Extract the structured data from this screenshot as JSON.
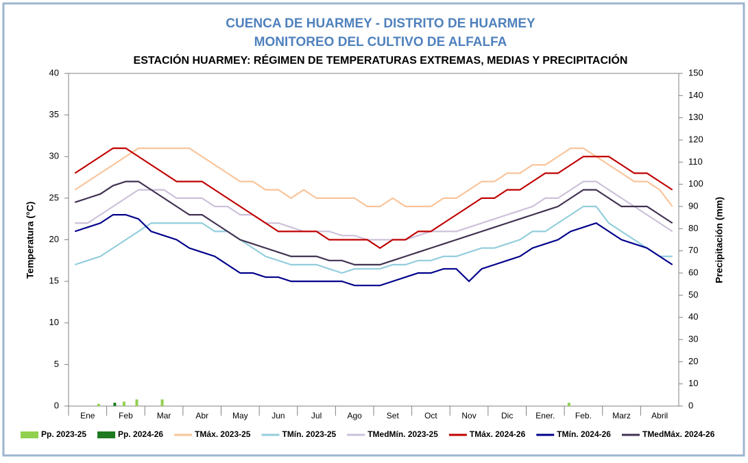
{
  "chart_data": {
    "type": "line",
    "title": "CUENCA DE HUARMEY - DISTRITO DE HUARMEY",
    "subtitle": "MONITOREO DEL CULTIVO DE ALFALFA",
    "chart_title": "ESTACIÓN HUARMEY: RÉGIMEN DE TEMPERATURAS EXTREMAS, MEDIAS Y PRECIPITACIÓN",
    "y_label": "Temperatura (°C)",
    "y2_label": "Precipitación (mm)",
    "categories": [
      null,
      "Ene",
      null,
      null,
      "Feb",
      null,
      null,
      "Mar",
      null,
      null,
      "Abr",
      null,
      null,
      "May",
      null,
      null,
      "Jun",
      null,
      null,
      "Jul",
      null,
      null,
      "Ago",
      null,
      null,
      "Set",
      null,
      null,
      "Oct",
      null,
      null,
      "Nov",
      null,
      null,
      "Dic",
      null,
      null,
      "Ener.",
      null,
      null,
      "Feb.",
      null,
      null,
      "Marz",
      null,
      null,
      "Abril",
      null
    ],
    "ylim": [
      0,
      40
    ],
    "yticks": [
      0,
      5,
      10,
      15,
      20,
      25,
      30,
      35,
      40
    ],
    "y2lim": [
      0,
      150
    ],
    "y2ticks": [
      0,
      10,
      20,
      30,
      40,
      50,
      60,
      70,
      80,
      90,
      100,
      110,
      120,
      130,
      140,
      150
    ],
    "series": [
      {
        "name": "Pp. 2023-25",
        "type": "bar",
        "axis": "y2",
        "color": "#92d050",
        "values": [
          0,
          0,
          1,
          0,
          2,
          3,
          0,
          3,
          0,
          0,
          0,
          0,
          0,
          0,
          0,
          0,
          0,
          0,
          0,
          0,
          0,
          0,
          0,
          0,
          0,
          0,
          0,
          0,
          0,
          0,
          0,
          0,
          0,
          0,
          0,
          0,
          0,
          0,
          0,
          1.5,
          0,
          0,
          0,
          0,
          0,
          0,
          0,
          0
        ]
      },
      {
        "name": "Pp. 2024-26",
        "type": "bar",
        "axis": "y2",
        "color": "#1e7a1e",
        "values": [
          0,
          0,
          0,
          1.5,
          0,
          0,
          0,
          0,
          0,
          0,
          0,
          0,
          0,
          0,
          0,
          0,
          0,
          0,
          0,
          0,
          0,
          0,
          0,
          0,
          0,
          0,
          0,
          0,
          0,
          0,
          0,
          0,
          0,
          0,
          0,
          0,
          0,
          0,
          0,
          0,
          0,
          0,
          0,
          0,
          0,
          0,
          0,
          0
        ]
      },
      {
        "name": "TMáx. 2023-25",
        "type": "line",
        "color": "#f9c49a",
        "values": [
          26,
          27,
          28,
          29,
          30,
          31,
          31,
          31,
          31,
          31,
          30,
          29,
          28,
          27,
          27,
          26,
          26,
          25,
          26,
          25,
          25,
          25,
          25,
          24,
          24,
          25,
          24,
          24,
          24,
          25,
          25,
          26,
          27,
          27,
          28,
          28,
          29,
          29,
          30,
          31,
          31,
          30,
          29,
          28,
          27,
          27,
          26,
          24
        ]
      },
      {
        "name": "TMín. 2023-25",
        "type": "line",
        "color": "#92cddc",
        "values": [
          17,
          17.5,
          18,
          19,
          20,
          21,
          22,
          22,
          22,
          22,
          22,
          21,
          21,
          20,
          19,
          18,
          17.5,
          17,
          17,
          17,
          16.5,
          16,
          16.5,
          16.5,
          16.5,
          17,
          17,
          17.5,
          17.5,
          18,
          18,
          18.5,
          19,
          19,
          19.5,
          20,
          21,
          21,
          22,
          23,
          24,
          24,
          22,
          21,
          20,
          19,
          18,
          18
        ]
      },
      {
        "name": "TMedMín. 2023-25",
        "type": "line",
        "color": "#ccc0da",
        "values": [
          22,
          22,
          23,
          24,
          25,
          26,
          26,
          26,
          25,
          25,
          25,
          24,
          24,
          23,
          23,
          22,
          22,
          21.5,
          21,
          21,
          21,
          20.5,
          20.5,
          20,
          20,
          20,
          20,
          20.5,
          21,
          21,
          21,
          21.5,
          22,
          22.5,
          23,
          23.5,
          24,
          25,
          25,
          26,
          27,
          27,
          26,
          25,
          24,
          23,
          22,
          21
        ]
      },
      {
        "name": "TMáx. 2024-26",
        "type": "line",
        "color": "#c00000",
        "values": [
          28,
          29,
          30,
          31,
          31,
          30,
          29,
          28,
          27,
          27,
          27,
          26,
          25,
          24,
          23,
          22,
          21,
          21,
          21,
          21,
          20,
          20,
          20,
          20,
          19,
          20,
          20,
          21,
          21,
          22,
          23,
          24,
          25,
          25,
          26,
          26,
          27,
          28,
          28,
          29,
          30,
          30,
          30,
          29,
          28,
          28,
          27,
          26
        ]
      },
      {
        "name": "TMín. 2024-26",
        "type": "line",
        "color": "#00008b",
        "values": [
          21,
          21.5,
          22,
          23,
          23,
          22.5,
          21,
          20.5,
          20,
          19,
          18.5,
          18,
          17,
          16,
          16,
          15.5,
          15.5,
          15,
          15,
          15,
          15,
          15,
          14.5,
          14.5,
          14.5,
          15,
          15.5,
          16,
          16,
          16.5,
          16.5,
          15,
          16.5,
          17,
          17.5,
          18,
          19,
          19.5,
          20,
          21,
          21.5,
          22,
          21,
          20,
          19.5,
          19,
          18,
          17
        ]
      },
      {
        "name": "TMedMáx. 2024-26",
        "type": "line",
        "color": "#403151",
        "values": [
          24.5,
          25,
          25.5,
          26.5,
          27,
          27,
          26,
          25,
          24,
          23,
          23,
          22,
          21,
          20,
          19.5,
          19,
          18.5,
          18,
          18,
          18,
          17.5,
          17.5,
          17,
          17,
          17,
          17.5,
          18,
          18.5,
          19,
          19.5,
          20,
          20.5,
          21,
          21.5,
          22,
          22.5,
          23,
          23.5,
          24,
          25,
          26,
          26,
          25,
          24,
          24,
          24,
          23,
          22
        ]
      }
    ]
  }
}
